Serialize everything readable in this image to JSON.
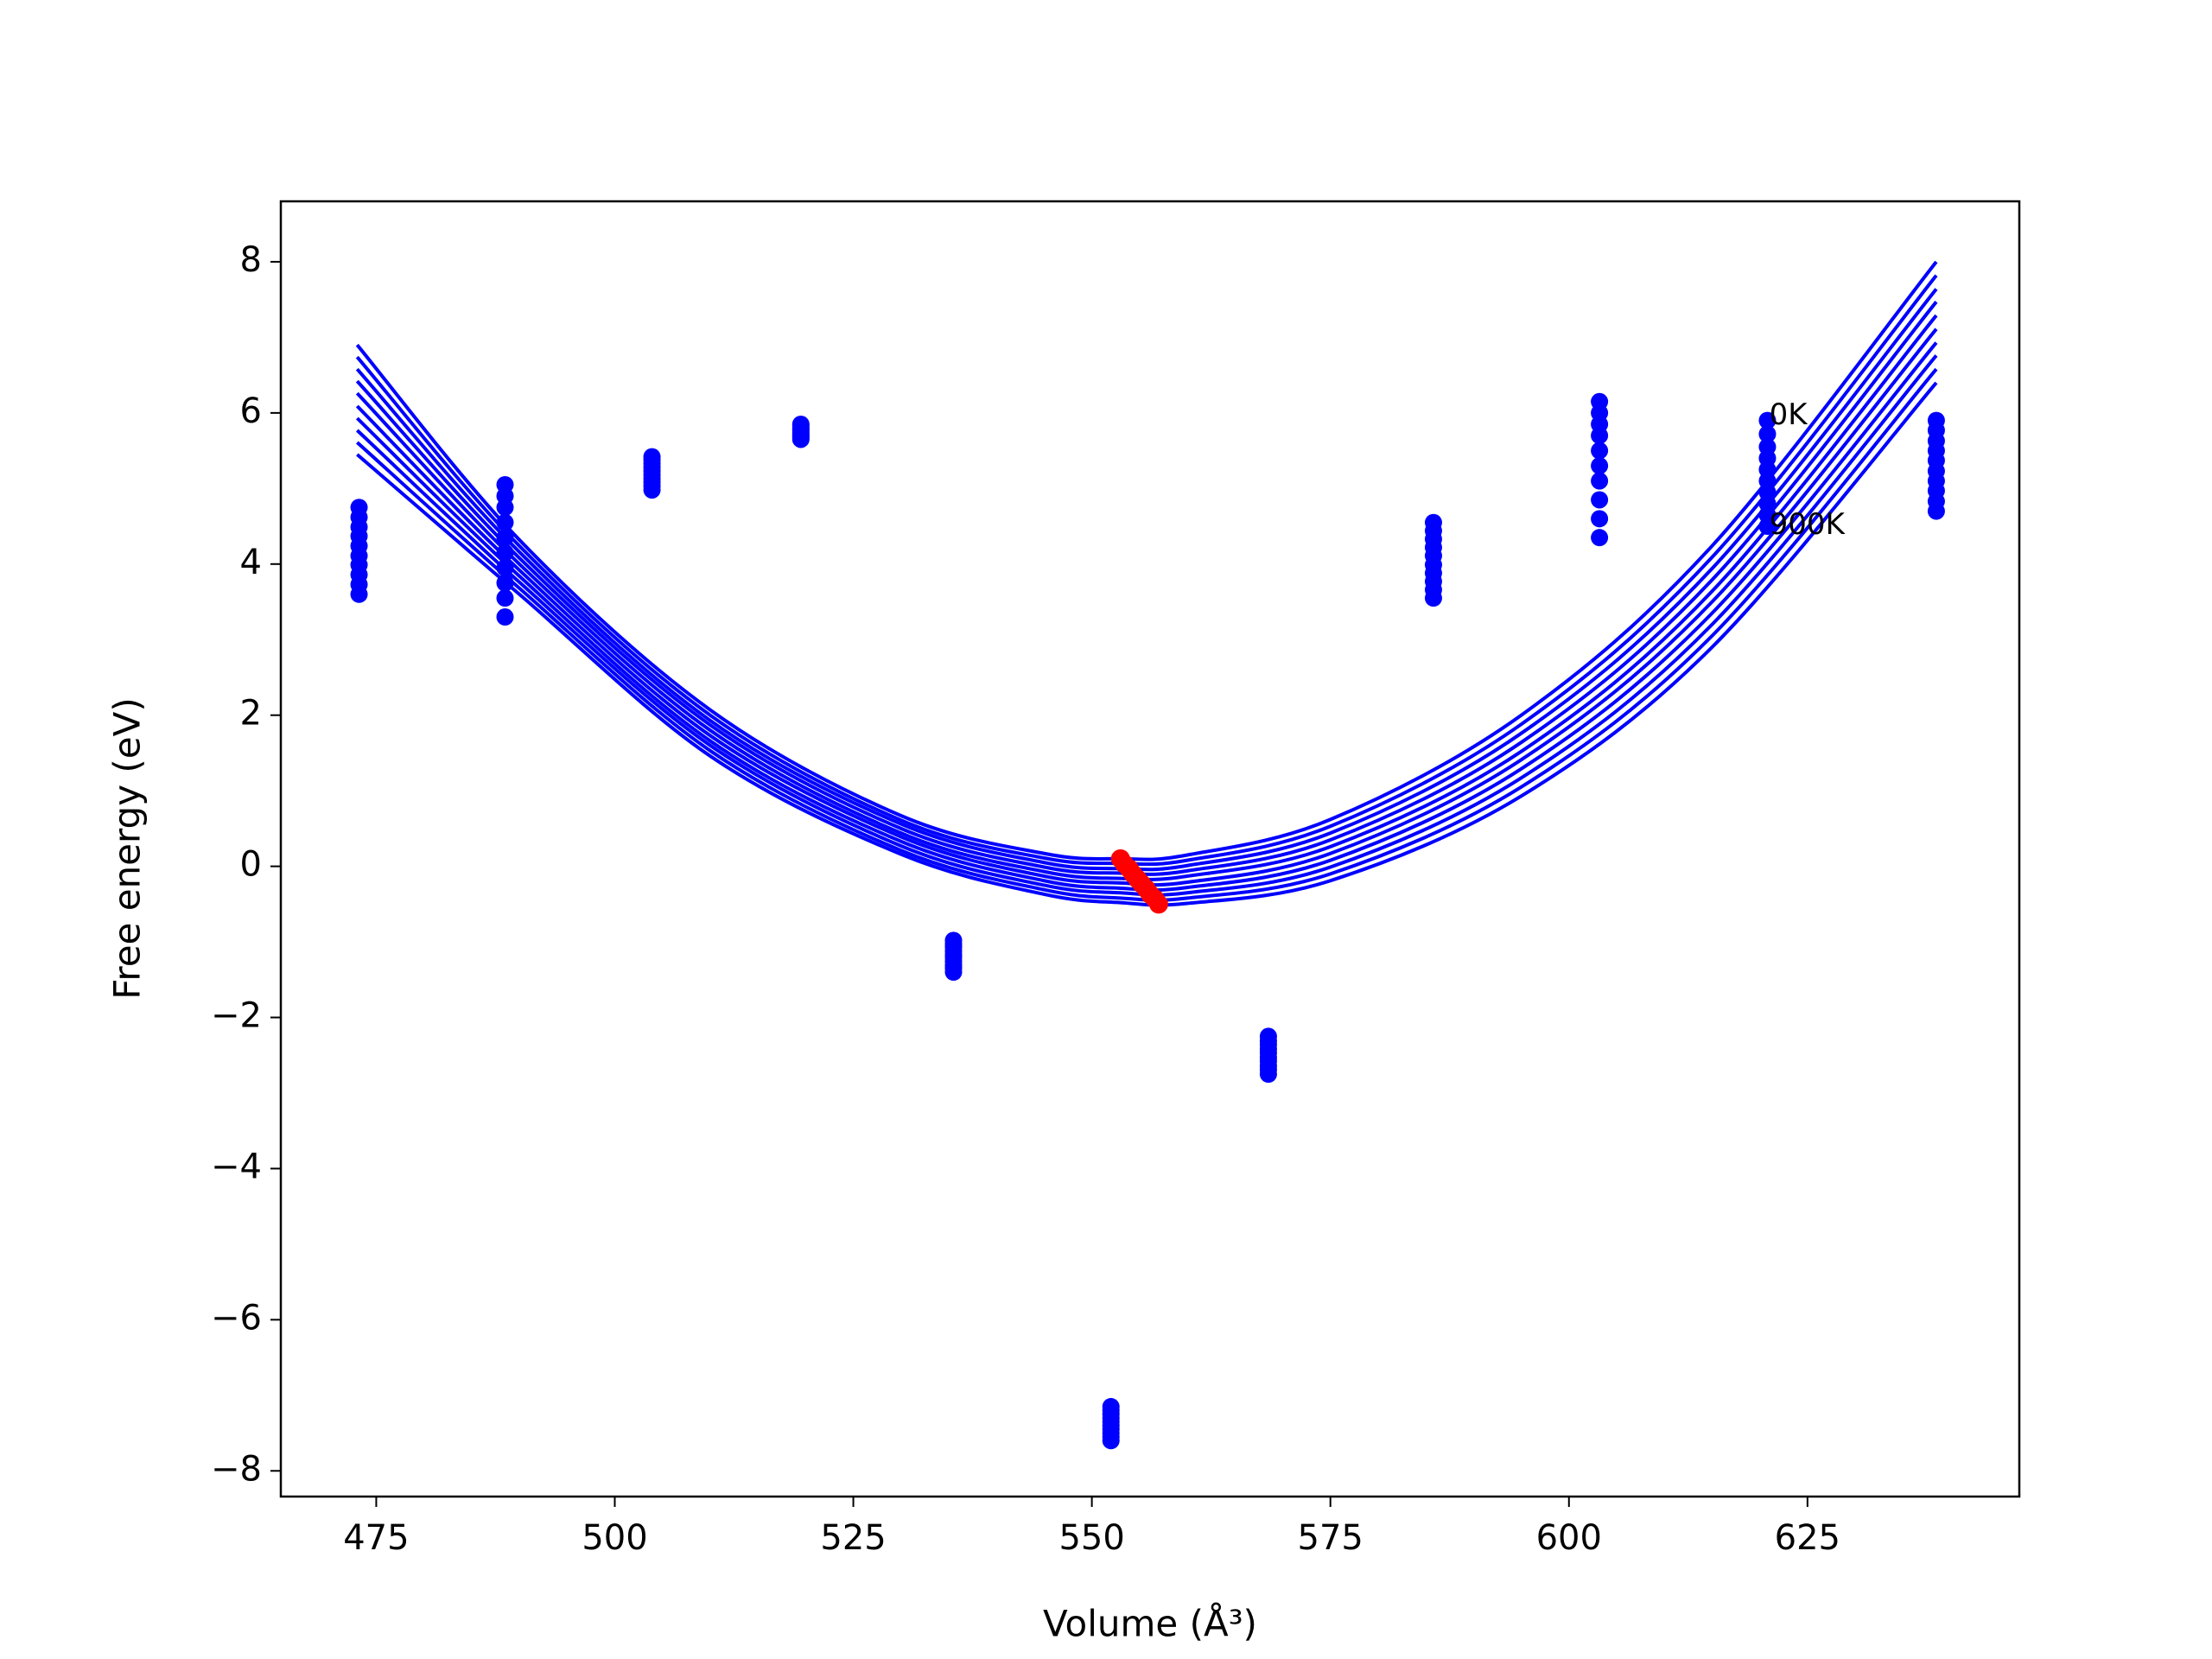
{
  "chart_data": {
    "type": "line",
    "xlabel": "Volume (Å³)",
    "ylabel": "Free energy (eV)",
    "xlim": [
      465,
      647.2
    ],
    "ylim": [
      -8.34,
      8.8
    ],
    "xticks": [
      475,
      500,
      525,
      550,
      575,
      600,
      625
    ],
    "yticks": [
      {
        "value": -8,
        "label": "−8"
      },
      {
        "value": -6,
        "label": "−6"
      },
      {
        "value": -4,
        "label": "−4"
      },
      {
        "value": -2,
        "label": "−2"
      },
      0,
      2,
      4,
      6,
      8
    ],
    "grid": false,
    "x": [
      473,
      490,
      510,
      530,
      545,
      553,
      560,
      575,
      595,
      615,
      638.5
    ],
    "series": [
      {
        "color": "#0000ff",
        "values": [
          6.9,
          4.32,
          2.07,
          0.67,
          0.17,
          0.1,
          0.15,
          0.62,
          2.0,
          4.24,
          8.0
        ]
      },
      {
        "color": "#0000ff",
        "values": [
          6.74,
          4.24,
          2.0,
          0.61,
          0.11,
          0.04,
          0.08,
          0.53,
          1.88,
          4.09,
          7.82
        ]
      },
      {
        "color": "#0000ff",
        "values": [
          6.58,
          4.16,
          1.93,
          0.56,
          0.05,
          -0.03,
          0.01,
          0.44,
          1.76,
          3.94,
          7.64
        ]
      },
      {
        "color": "#0000ff",
        "values": [
          6.42,
          4.08,
          1.87,
          0.5,
          -0.01,
          -0.09,
          -0.06,
          0.35,
          1.64,
          3.79,
          7.47
        ]
      },
      {
        "color": "#0000ff",
        "values": [
          6.26,
          4.0,
          1.8,
          0.44,
          -0.07,
          -0.16,
          -0.13,
          0.26,
          1.52,
          3.64,
          7.29
        ]
      },
      {
        "color": "#0000ff",
        "values": [
          6.09,
          3.92,
          1.73,
          0.39,
          -0.13,
          -0.22,
          -0.21,
          0.17,
          1.41,
          3.5,
          7.11
        ]
      },
      {
        "color": "#0000ff",
        "values": [
          5.93,
          3.84,
          1.66,
          0.33,
          -0.19,
          -0.29,
          -0.28,
          0.08,
          1.29,
          3.35,
          6.93
        ]
      },
      {
        "color": "#0000ff",
        "values": [
          5.77,
          3.76,
          1.6,
          0.27,
          -0.25,
          -0.35,
          -0.35,
          -0.01,
          1.17,
          3.2,
          6.76
        ]
      },
      {
        "color": "#0000ff",
        "values": [
          5.61,
          3.68,
          1.53,
          0.21,
          -0.31,
          -0.42,
          -0.42,
          -0.1,
          1.05,
          3.05,
          6.58
        ]
      },
      {
        "color": "#0000ff",
        "values": [
          5.45,
          3.6,
          1.46,
          0.16,
          -0.37,
          -0.48,
          -0.49,
          -0.19,
          0.93,
          2.9,
          6.4
        ]
      }
    ],
    "scatter": [
      {
        "type": "scatter",
        "color": "#0000ff",
        "x": [
          473.2,
          473.2,
          473.2,
          473.2,
          473.2,
          473.2,
          473.2,
          473.2,
          473.2,
          473.2
        ],
        "values": [
          3.6,
          3.73,
          3.86,
          3.99,
          4.11,
          4.24,
          4.37,
          4.49,
          4.62,
          4.75
        ]
      },
      {
        "type": "scatter",
        "color": "#0000ff",
        "x": [
          488.5,
          488.5,
          488.5,
          488.5,
          488.5,
          488.5,
          488.5,
          488.5,
          488.5,
          488.5
        ],
        "values": [
          3.3,
          3.55,
          3.75,
          3.95,
          4.15,
          4.35,
          4.55,
          4.75,
          4.9,
          5.05
        ]
      },
      {
        "type": "scatter",
        "color": "#0000ff",
        "x": [
          503.9,
          503.9,
          503.9,
          503.9,
          503.9,
          503.9,
          503.9,
          503.9,
          503.9,
          503.9
        ],
        "values": [
          4.98,
          5.03,
          5.08,
          5.13,
          5.18,
          5.23,
          5.28,
          5.33,
          5.38,
          5.42
        ]
      },
      {
        "type": "scatter",
        "color": "#0000ff",
        "x": [
          519.5,
          519.5,
          519.5,
          519.5,
          519.5,
          519.5,
          519.5,
          519.5,
          519.5,
          519.5
        ],
        "values": [
          5.65,
          5.67,
          5.69,
          5.71,
          5.73,
          5.76,
          5.78,
          5.8,
          5.83,
          5.85
        ]
      },
      {
        "type": "scatter",
        "color": "#0000ff",
        "x": [
          535.5,
          535.5,
          535.5,
          535.5,
          535.5,
          535.5,
          535.5,
          535.5,
          535.5,
          535.5
        ],
        "values": [
          -1.4,
          -1.35,
          -1.31,
          -1.26,
          -1.21,
          -1.17,
          -1.12,
          -1.07,
          -1.03,
          -0.98
        ]
      },
      {
        "type": "scatter",
        "color": "#0000ff",
        "x": [
          552,
          552,
          552,
          552,
          552,
          552,
          552,
          552,
          552,
          552
        ],
        "values": [
          -7.6,
          -7.55,
          -7.5,
          -7.45,
          -7.4,
          -7.35,
          -7.3,
          -7.25,
          -7.2,
          -7.15
        ]
      },
      {
        "type": "scatter",
        "color": "#0000ff",
        "x": [
          568.5,
          568.5,
          568.5,
          568.5,
          568.5,
          568.5,
          568.5,
          568.5,
          568.5,
          568.5
        ],
        "values": [
          -2.75,
          -2.69,
          -2.64,
          -2.58,
          -2.53,
          -2.47,
          -2.42,
          -2.36,
          -2.31,
          -2.25
        ]
      },
      {
        "type": "scatter",
        "color": "#0000ff",
        "x": [
          585.8,
          585.8,
          585.8,
          585.8,
          585.8,
          585.8,
          585.8,
          585.8,
          585.8,
          585.8
        ],
        "values": [
          3.55,
          3.66,
          3.77,
          3.88,
          3.99,
          4.11,
          4.22,
          4.33,
          4.44,
          4.55
        ]
      },
      {
        "type": "scatter",
        "color": "#0000ff",
        "x": [
          603.2,
          603.2,
          603.2,
          603.2,
          603.2,
          603.2,
          603.2,
          603.2,
          603.2,
          603.2
        ],
        "values": [
          4.35,
          4.6,
          4.85,
          5.1,
          5.3,
          5.5,
          5.7,
          5.85,
          6.0,
          6.15
        ]
      },
      {
        "type": "scatter",
        "color": "#0000ff",
        "x": [
          620.8,
          620.8,
          620.8,
          620.8,
          620.8,
          620.8,
          620.8,
          620.8,
          620.8,
          620.8
        ],
        "values": [
          4.5,
          4.65,
          4.8,
          4.95,
          5.1,
          5.25,
          5.4,
          5.55,
          5.72,
          5.9
        ]
      },
      {
        "type": "scatter",
        "color": "#0000ff",
        "x": [
          638.5,
          638.5,
          638.5,
          638.5,
          638.5,
          638.5,
          638.5,
          638.5,
          638.5,
          638.5
        ],
        "values": [
          4.7,
          4.83,
          4.97,
          5.1,
          5.23,
          5.37,
          5.5,
          5.63,
          5.77,
          5.9
        ]
      },
      {
        "type": "scatter",
        "color": "#ff0000",
        "x": [
          553.0,
          553.4,
          553.9,
          554.3,
          554.8,
          555.2,
          555.7,
          556.1,
          556.6,
          557.0
        ],
        "values": [
          0.1,
          0.03,
          -0.03,
          -0.1,
          -0.17,
          -0.23,
          -0.3,
          -0.37,
          -0.43,
          -0.5
        ]
      }
    ],
    "annotations": [
      {
        "text": "0K",
        "x": 621,
        "y": 5.85
      },
      {
        "text": "900K",
        "x": 621,
        "y": 4.4
      }
    ]
  }
}
